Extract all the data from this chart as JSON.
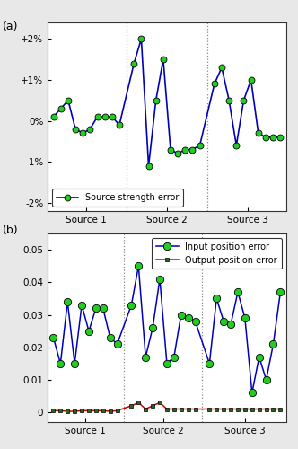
{
  "subplot_a": {
    "ylim": [
      -0.022,
      0.024
    ],
    "yticks": [
      -0.02,
      -0.01,
      0.0,
      0.01,
      0.02
    ],
    "yticklabels": [
      "-2%",
      "-1%",
      "0%",
      "+1%",
      "+2%"
    ],
    "source1_values": [
      0.001,
      0.003,
      0.005,
      -0.002,
      -0.003,
      -0.002,
      0.001,
      0.001,
      0.001,
      -0.001
    ],
    "source2_values": [
      0.014,
      0.02,
      -0.011,
      0.005,
      0.015,
      -0.007,
      -0.008,
      -0.007,
      -0.007,
      -0.006
    ],
    "source3_values": [
      0.009,
      0.013,
      0.005,
      -0.006,
      0.005,
      0.01,
      -0.003,
      -0.004,
      -0.004,
      -0.004
    ],
    "line_color": "#0000bb",
    "marker_face_color": "#22cc22",
    "marker_edge_color": "#000000",
    "legend_label": "Source strength error"
  },
  "subplot_b": {
    "ylim": [
      -0.003,
      0.055
    ],
    "yticks": [
      0.0,
      0.01,
      0.02,
      0.03,
      0.04,
      0.05
    ],
    "yticklabels": [
      "0",
      "0.01",
      "0.02",
      "0.03",
      "0.04",
      "0.05"
    ],
    "source1_input": [
      0.023,
      0.015,
      0.034,
      0.015,
      0.033,
      0.025,
      0.032,
      0.032,
      0.023,
      0.021
    ],
    "source2_input": [
      0.033,
      0.045,
      0.017,
      0.026,
      0.041,
      0.015,
      0.017,
      0.03,
      0.029,
      0.028
    ],
    "source3_input": [
      0.015,
      0.035,
      0.028,
      0.027,
      0.037,
      0.029,
      0.006,
      0.017,
      0.01,
      0.021,
      0.037
    ],
    "source1_output": [
      0.0005,
      0.0005,
      0.0003,
      0.0003,
      0.0005,
      0.0005,
      0.0005,
      0.0005,
      0.0003,
      0.0005
    ],
    "source2_output": [
      0.002,
      0.003,
      0.001,
      0.002,
      0.003,
      0.001,
      0.001,
      0.001,
      0.001,
      0.001
    ],
    "source3_output": [
      0.001,
      0.001,
      0.001,
      0.001,
      0.001,
      0.001,
      0.001,
      0.001,
      0.001,
      0.001,
      0.001
    ],
    "input_line_color": "#0000bb",
    "input_marker_face_color": "#22cc22",
    "input_marker_edge_color": "#000000",
    "output_line_color": "#cc0000",
    "output_marker_face_color": "#226622",
    "output_marker_edge_color": "#000000",
    "legend_input_label": "Input position error",
    "legend_output_label": "Output position error"
  },
  "source_labels": [
    "Source 1",
    "Source 2",
    "Source 3"
  ],
  "vline_color": "#888888",
  "bg_color": "#e8e8e8",
  "axes_bg": "#ffffff"
}
